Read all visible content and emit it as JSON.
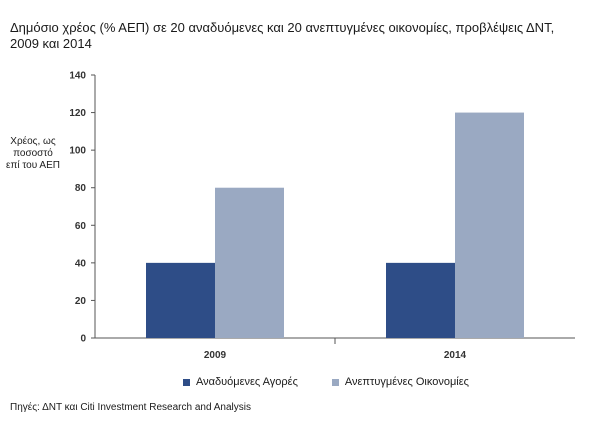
{
  "chart_data": {
    "type": "bar",
    "title": "Δημόσιο χρέος (% ΑΕΠ) σε 20 αναδυόμενες και 20 ανεπτυγμένες οικονομίες, προβλέψεις ΔΝΤ, 2009 και 2014",
    "ylabel": "Χρέος, ως ποσοστό επί του ΑΕΠ",
    "xlabel": "",
    "categories": [
      "2009",
      "2014"
    ],
    "series": [
      {
        "name": "Αναδυόμενες Αγορές",
        "values": [
          40,
          40
        ],
        "color": "#2e4d87"
      },
      {
        "name": "Ανεπτυγμένες Οικονομίες",
        "values": [
          80,
          120
        ],
        "color": "#9aa9c2"
      }
    ],
    "ylim": [
      0,
      140
    ],
    "yticks": [
      "0",
      "20",
      "40",
      "60",
      "80",
      "100",
      "120",
      "140"
    ],
    "grid": false,
    "legend_position": "bottom",
    "source": "Πηγές: ΔΝΤ και Citi Investment Research and Analysis"
  }
}
